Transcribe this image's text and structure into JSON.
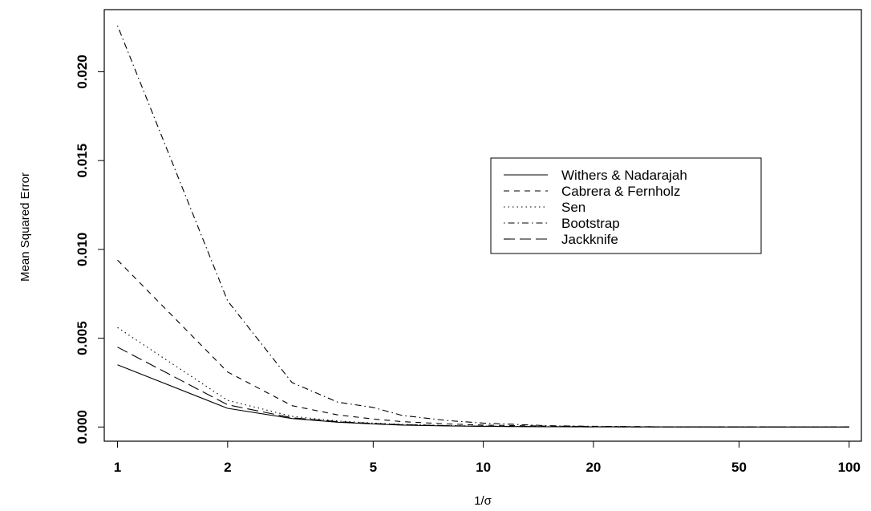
{
  "chart_data": {
    "type": "line",
    "x_scale": "log",
    "x": [
      1,
      2,
      3,
      4,
      5,
      6,
      8,
      10,
      15,
      20,
      30,
      50,
      100
    ],
    "xlim": [
      0.92,
      108
    ],
    "x_ticks": [
      "1",
      "2",
      "5",
      "10",
      "20",
      "50",
      "100"
    ],
    "ylim": [
      -0.0008,
      0.0235
    ],
    "y_ticks": [
      "0.000",
      "0.005",
      "0.010",
      "0.015",
      "0.020"
    ],
    "xlabel": "1/σ",
    "ylabel": "Mean Squared Error",
    "grid": false,
    "legend_position": "right, upper middle",
    "series": [
      {
        "name": "Withers & Nadarajah",
        "dash": "solid",
        "values": [
          0.0035,
          0.00105,
          0.00048,
          0.00027,
          0.00017,
          0.00011,
          6e-05,
          4e-05,
          1.5e-05,
          8e-06,
          4e-06,
          1e-06,
          3e-07
        ]
      },
      {
        "name": "Cabrera & Fernholz",
        "dash": "dashed",
        "values": [
          0.0094,
          0.0031,
          0.0012,
          0.00068,
          0.00045,
          0.0003,
          0.00017,
          0.00011,
          5e-05,
          2.8e-05,
          1.2e-05,
          4e-06,
          1e-06
        ]
      },
      {
        "name": "Sen",
        "dash": "dotted",
        "values": [
          0.0056,
          0.0015,
          0.0006,
          0.00034,
          0.00022,
          0.00015,
          8e-05,
          5e-05,
          2e-05,
          1e-05,
          5e-06,
          2e-06,
          5e-07
        ]
      },
      {
        "name": "Bootstrap",
        "dash": "dotdash",
        "values": [
          0.0226,
          0.0071,
          0.0025,
          0.0014,
          0.0011,
          0.00065,
          0.00036,
          0.00022,
          7e-05,
          4e-05,
          1.5e-05,
          5e-06,
          1e-06
        ]
      },
      {
        "name": "Jackknife",
        "dash": "longdash",
        "values": [
          0.0045,
          0.00125,
          0.00052,
          0.0003,
          0.0002,
          0.00013,
          7e-05,
          4.5e-05,
          1.8e-05,
          9e-06,
          4e-06,
          1.5e-06,
          4e-07
        ]
      }
    ]
  }
}
